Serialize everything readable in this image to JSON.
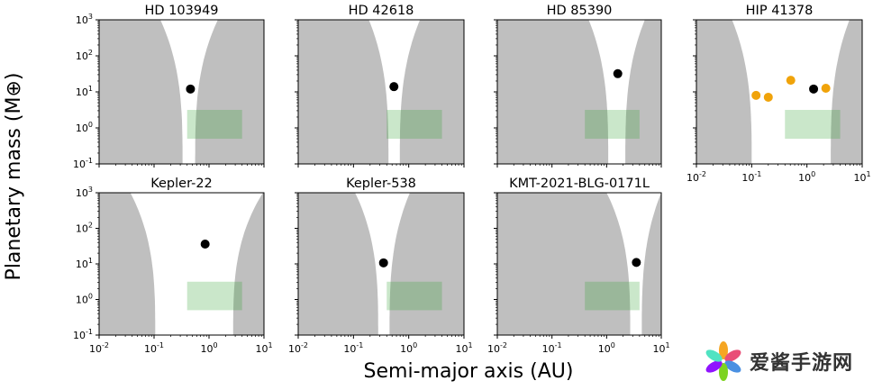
{
  "chart_data": {
    "type": "scatter",
    "xlabel": "Semi-major axis (AU)",
    "ylabel": "Planetary mass (M⊕)",
    "xscale": "log",
    "yscale": "log",
    "xlim": [
      0.01,
      10
    ],
    "ylim": [
      0.1,
      1000
    ],
    "xticks": [
      "10^-2",
      "10^-1",
      "10^0",
      "10^1"
    ],
    "yticks": [
      "10^-1",
      "10^0",
      "10^1",
      "10^2",
      "10^3"
    ],
    "colors": {
      "unstable_region": "#bfbfbf",
      "habitable_zone": "#2ca02c",
      "planet": "#000000",
      "other_planets": "#f0a30a"
    },
    "habitable_zone_box": {
      "a_range": [
        0.4,
        4.0
      ],
      "mass_range": [
        0.5,
        3.16
      ]
    },
    "panels": [
      {
        "title": "HD 103949",
        "planet": {
          "a": 0.46,
          "mass": 12
        },
        "others": [],
        "stable_gap": {
          "inner_edge_bottom": 0.33,
          "inner_edge_top": 0.13,
          "outer_edge_bottom": 0.56,
          "outer_edge_top": 1.45
        }
      },
      {
        "title": "HD 42618",
        "planet": {
          "a": 0.54,
          "mass": 14
        },
        "others": [],
        "stable_gap": {
          "inner_edge_bottom": 0.43,
          "inner_edge_top": 0.19,
          "outer_edge_bottom": 0.69,
          "outer_edge_top": 1.6
        }
      },
      {
        "title": "HD 85390",
        "planet": {
          "a": 1.6,
          "mass": 32
        },
        "others": [],
        "stable_gap": {
          "inner_edge_bottom": 1.07,
          "inner_edge_top": 0.47,
          "outer_edge_bottom": 2.2,
          "outer_edge_top": 5.0
        }
      },
      {
        "title": "HIP 41378",
        "planet": {
          "a": 1.32,
          "mass": 12
        },
        "others": [
          {
            "a": 0.12,
            "mass": 8
          },
          {
            "a": 0.2,
            "mass": 7.1
          },
          {
            "a": 0.51,
            "mass": 21
          },
          {
            "a": 2.2,
            "mass": 12.6
          }
        ],
        "stable_gap": {
          "inner_edge_bottom": 0.1,
          "inner_edge_top": 0.044,
          "outer_edge_bottom": 2.7,
          "outer_edge_top": 5.9
        }
      },
      {
        "title": "Kepler-22",
        "planet": {
          "a": 0.85,
          "mass": 36
        },
        "others": [],
        "stable_gap": {
          "inner_edge_bottom": 0.105,
          "inner_edge_top": 0.037,
          "outer_edge_bottom": 2.75,
          "outer_edge_top": 9.6
        }
      },
      {
        "title": "Kepler-538",
        "planet": {
          "a": 0.35,
          "mass": 10.7
        },
        "others": [],
        "stable_gap": {
          "inner_edge_bottom": 0.28,
          "inner_edge_top": 0.107,
          "outer_edge_bottom": 0.45,
          "outer_edge_top": 1.05
        }
      },
      {
        "title": "KMT-2021-BLG-0171L",
        "planet": {
          "a": 3.5,
          "mass": 11
        },
        "others": [],
        "stable_gap": {
          "inner_edge_bottom": 2.7,
          "inner_edge_top": 1.0,
          "outer_edge_bottom": 4.4,
          "outer_edge_top": 10
        }
      }
    ]
  },
  "watermark": {
    "text": "爱酱手游网"
  }
}
